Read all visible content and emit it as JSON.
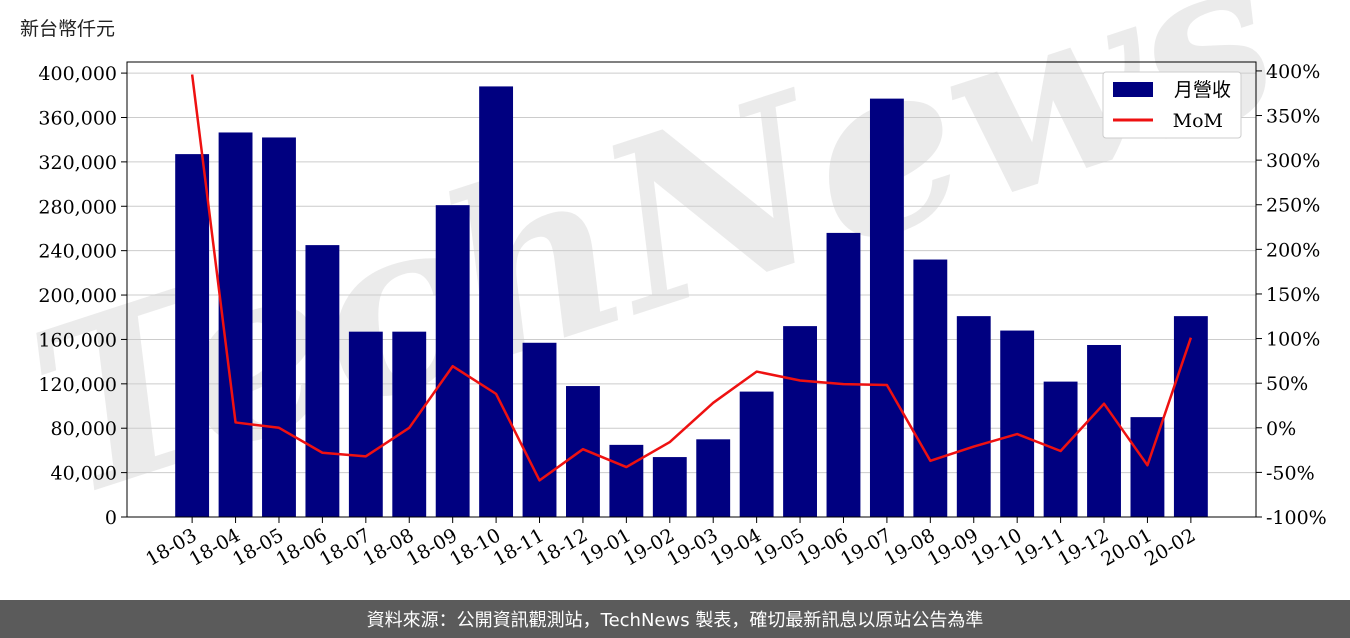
{
  "unit_label": "新台幣仟元",
  "footer_text": "資料來源：公開資訊觀測站，TechNews 製表，確切最新訊息以原站公告為準",
  "watermark_text": "TechNews",
  "colors": {
    "bar": "#000080",
    "line": "#ee1111",
    "footer_bg": "#5b5b5b",
    "watermark_gray": "#c8c8c8",
    "watermark_red": "#f2c4c4"
  },
  "chart_data": {
    "type": "bar",
    "title": "",
    "xlabel": "",
    "ylabel": "",
    "categories": [
      "18-03",
      "18-04",
      "18-05",
      "18-06",
      "18-07",
      "18-08",
      "18-09",
      "18-10",
      "18-11",
      "18-12",
      "19-01",
      "19-02",
      "19-03",
      "19-04",
      "19-05",
      "19-06",
      "19-07",
      "19-08",
      "19-09",
      "19-10",
      "19-11",
      "19-12",
      "20-01",
      "20-02"
    ],
    "series": [
      {
        "name": "月營收",
        "type": "bar",
        "axis": "left",
        "values": [
          327000,
          346500,
          342000,
          245000,
          167000,
          167000,
          281000,
          388000,
          157000,
          118000,
          65000,
          54000,
          70000,
          113000,
          172000,
          256000,
          377000,
          232000,
          181000,
          168000,
          122000,
          155000,
          90000,
          181000
        ]
      },
      {
        "name": "MoM",
        "type": "line",
        "axis": "right",
        "values": [
          396,
          6,
          0,
          -28,
          -32,
          0,
          69,
          38,
          -59,
          -24,
          -44,
          -16,
          28,
          63,
          53,
          49,
          48,
          -37,
          -21,
          -7,
          -26,
          27,
          -42,
          101
        ]
      }
    ],
    "y_left": {
      "min": 0,
      "max": 410000,
      "ticks": [
        0,
        40000,
        80000,
        120000,
        160000,
        200000,
        240000,
        280000,
        320000,
        360000,
        400000
      ],
      "tick_labels": [
        "0",
        "40,000",
        "80,000",
        "120,000",
        "160,000",
        "200,000",
        "240,000",
        "280,000",
        "320,000",
        "360,000",
        "400,000"
      ]
    },
    "y_right": {
      "min": -100,
      "max": 410,
      "ticks": [
        -100,
        -50,
        0,
        50,
        100,
        150,
        200,
        250,
        300,
        350,
        400
      ],
      "tick_labels": [
        "-100%",
        "-50%",
        "0%",
        "50%",
        "100%",
        "150%",
        "200%",
        "250%",
        "300%",
        "350%",
        "400%"
      ]
    },
    "grid": "horizontal",
    "legend_position": "top-right"
  }
}
